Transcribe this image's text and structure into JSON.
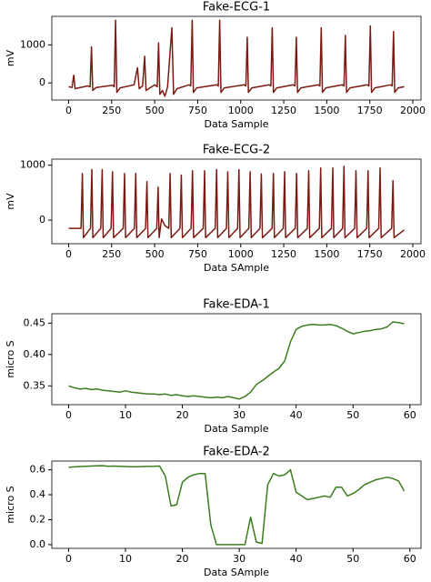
{
  "chart_data": [
    {
      "type": "line",
      "title": "Fake-ECG-1",
      "xlabel": "Data Sample",
      "ylabel": "mV",
      "color": "#7b1a12",
      "x": [
        0,
        20,
        30,
        38,
        110,
        125,
        133,
        140,
        160,
        255,
        265,
        273,
        280,
        300,
        380,
        400,
        410,
        430,
        442,
        450,
        500,
        515,
        523,
        530,
        545,
        560,
        575,
        600,
        610,
        630,
        700,
        710,
        718,
        725,
        745,
        860,
        870,
        878,
        885,
        905,
        1020,
        1030,
        1038,
        1045,
        1065,
        1165,
        1175,
        1183,
        1190,
        1210,
        1305,
        1315,
        1323,
        1330,
        1350,
        1450,
        1460,
        1468,
        1475,
        1495,
        1590,
        1600,
        1608,
        1615,
        1635,
        1735,
        1745,
        1753,
        1760,
        1780,
        1870,
        1880,
        1888,
        1895,
        1915,
        1950
      ],
      "values": [
        -100,
        -120,
        200,
        -150,
        -80,
        -100,
        950,
        -200,
        -120,
        -60,
        -100,
        1650,
        -250,
        -130,
        -50,
        400,
        -150,
        -80,
        700,
        -200,
        -50,
        -100,
        1050,
        -300,
        -200,
        -350,
        -100,
        1450,
        -300,
        -150,
        -50,
        -80,
        1650,
        -250,
        -130,
        -50,
        -80,
        1650,
        -250,
        -130,
        -50,
        -80,
        1200,
        -250,
        -130,
        -50,
        -80,
        1450,
        -250,
        -130,
        -50,
        -80,
        1200,
        -250,
        -130,
        -50,
        -80,
        1450,
        -250,
        -130,
        -50,
        -80,
        1250,
        -250,
        -130,
        -50,
        -80,
        1500,
        -250,
        -130,
        -50,
        -80,
        1350,
        -250,
        -130,
        -100
      ],
      "xlim": [
        -97.5,
        2047.5
      ],
      "xticks": [
        0,
        250,
        500,
        750,
        1000,
        1250,
        1500,
        1750,
        2000
      ],
      "ylim": [
        -450,
        1750
      ],
      "yticks": [
        0,
        1000
      ]
    },
    {
      "type": "line",
      "title": "Fake-ECG-2",
      "xlabel": "Data SAmple",
      "ylabel": "mV",
      "color": "#7b1a12",
      "x": [
        0,
        72,
        80,
        86,
        127,
        135,
        141,
        187,
        195,
        201,
        247,
        255,
        261,
        317,
        325,
        331,
        382,
        390,
        396,
        447,
        455,
        461,
        512,
        520,
        526,
        540,
        560,
        582,
        590,
        596,
        647,
        655,
        661,
        712,
        720,
        726,
        782,
        790,
        796,
        852,
        860,
        866,
        917,
        925,
        931,
        982,
        990,
        996,
        1047,
        1055,
        1061,
        1112,
        1120,
        1126,
        1182,
        1190,
        1196,
        1247,
        1255,
        1261,
        1317,
        1325,
        1331,
        1387,
        1395,
        1401,
        1457,
        1465,
        1471,
        1527,
        1535,
        1541,
        1592,
        1600,
        1606,
        1662,
        1670,
        1676,
        1732,
        1740,
        1746,
        1802,
        1810,
        1816,
        1877,
        1885,
        1891,
        1950
      ],
      "values": [
        -150,
        -150,
        850,
        -320,
        -150,
        920,
        -320,
        -150,
        920,
        -320,
        -150,
        880,
        -320,
        -150,
        850,
        -320,
        -150,
        850,
        -320,
        -150,
        700,
        -320,
        -150,
        600,
        -320,
        20,
        -100,
        -150,
        850,
        -320,
        -150,
        820,
        -320,
        -150,
        900,
        -320,
        -150,
        900,
        -320,
        -150,
        920,
        -320,
        -150,
        880,
        -320,
        -150,
        920,
        -320,
        -150,
        880,
        -320,
        -150,
        840,
        -320,
        -150,
        850,
        -320,
        -150,
        880,
        -320,
        -150,
        850,
        -320,
        -150,
        900,
        -320,
        -150,
        950,
        -320,
        -150,
        950,
        -320,
        -150,
        980,
        -320,
        -150,
        900,
        -320,
        -150,
        900,
        -320,
        -150,
        950,
        -320,
        -150,
        720,
        -320,
        -180
      ],
      "xlim": [
        -97.5,
        2047.5
      ],
      "xticks": [
        0,
        250,
        500,
        750,
        1000,
        1250,
        1500,
        1750,
        2000
      ],
      "ylim": [
        -430,
        1110
      ],
      "yticks": [
        0,
        1000
      ]
    },
    {
      "type": "line",
      "title": "Fake-EDA-1",
      "xlabel": "Data Sample",
      "ylabel": "micro S",
      "color": "#3a7d1e",
      "x": [
        0,
        1,
        2,
        3,
        4,
        5,
        6,
        7,
        8,
        9,
        10,
        11,
        12,
        13,
        14,
        15,
        16,
        17,
        18,
        19,
        20,
        21,
        22,
        23,
        24,
        25,
        26,
        27,
        28,
        29,
        30,
        31,
        32,
        33,
        34,
        35,
        36,
        37,
        38,
        39,
        40,
        41,
        42,
        43,
        44,
        45,
        46,
        47,
        48,
        49,
        50,
        51,
        52,
        53,
        54,
        55,
        56,
        57,
        58,
        59
      ],
      "values": [
        0.35,
        0.347,
        0.345,
        0.346,
        0.344,
        0.345,
        0.343,
        0.342,
        0.341,
        0.34,
        0.342,
        0.34,
        0.339,
        0.338,
        0.337,
        0.337,
        0.336,
        0.337,
        0.335,
        0.336,
        0.334,
        0.333,
        0.334,
        0.333,
        0.332,
        0.331,
        0.332,
        0.331,
        0.333,
        0.331,
        0.329,
        0.333,
        0.34,
        0.352,
        0.358,
        0.365,
        0.372,
        0.378,
        0.39,
        0.42,
        0.44,
        0.445,
        0.447,
        0.448,
        0.447,
        0.447,
        0.448,
        0.446,
        0.442,
        0.437,
        0.433,
        0.435,
        0.437,
        0.438,
        0.44,
        0.441,
        0.444,
        0.452,
        0.451,
        0.449
      ],
      "xlim": [
        -2.95,
        61.95
      ],
      "xticks": [
        0,
        10,
        20,
        30,
        40,
        50,
        60
      ],
      "ylim": [
        0.32,
        0.465
      ],
      "yticks": [
        0.35,
        {
          "value": 0.4,
          "label": "0.40"
        },
        0.45
      ]
    },
    {
      "type": "line",
      "title": "Fake-EDA-2",
      "xlabel": "Data SAmple",
      "ylabel": "micro S",
      "color": "#3a7d1e",
      "x": [
        0,
        1,
        2,
        3,
        4,
        5,
        6,
        7,
        8,
        9,
        10,
        11,
        12,
        13,
        14,
        15,
        16,
        17,
        18,
        19,
        20,
        21,
        22,
        23,
        24,
        25,
        26,
        27,
        28,
        29,
        30,
        31,
        32,
        33,
        34,
        35,
        36,
        37,
        38,
        39,
        40,
        41,
        42,
        43,
        44,
        45,
        46,
        47,
        48,
        49,
        50,
        51,
        52,
        53,
        54,
        55,
        56,
        57,
        58,
        59
      ],
      "values": [
        0.62,
        0.623,
        0.626,
        0.628,
        0.63,
        0.632,
        0.633,
        0.628,
        0.63,
        0.628,
        0.626,
        0.624,
        0.625,
        0.626,
        0.627,
        0.628,
        0.63,
        0.55,
        0.31,
        0.32,
        0.5,
        0.54,
        0.56,
        0.57,
        0.57,
        0.16,
        0,
        0,
        0,
        0,
        0,
        0,
        0.22,
        0.02,
        0.01,
        0.48,
        0.57,
        0.55,
        0.56,
        0.6,
        0.42,
        0.39,
        0.36,
        0.37,
        0.38,
        0.39,
        0.38,
        0.46,
        0.46,
        0.39,
        0.41,
        0.44,
        0.48,
        0.5,
        0.52,
        0.53,
        0.54,
        0.53,
        0.51,
        0.43
      ],
      "xlim": [
        -2.95,
        61.95
      ],
      "xticks": [
        0,
        10,
        20,
        30,
        40,
        50,
        60
      ],
      "ylim": [
        -0.03,
        0.67
      ],
      "yticks": [
        {
          "value": 0,
          "label": "0.0"
        },
        0.2,
        0.4,
        0.6
      ]
    }
  ]
}
